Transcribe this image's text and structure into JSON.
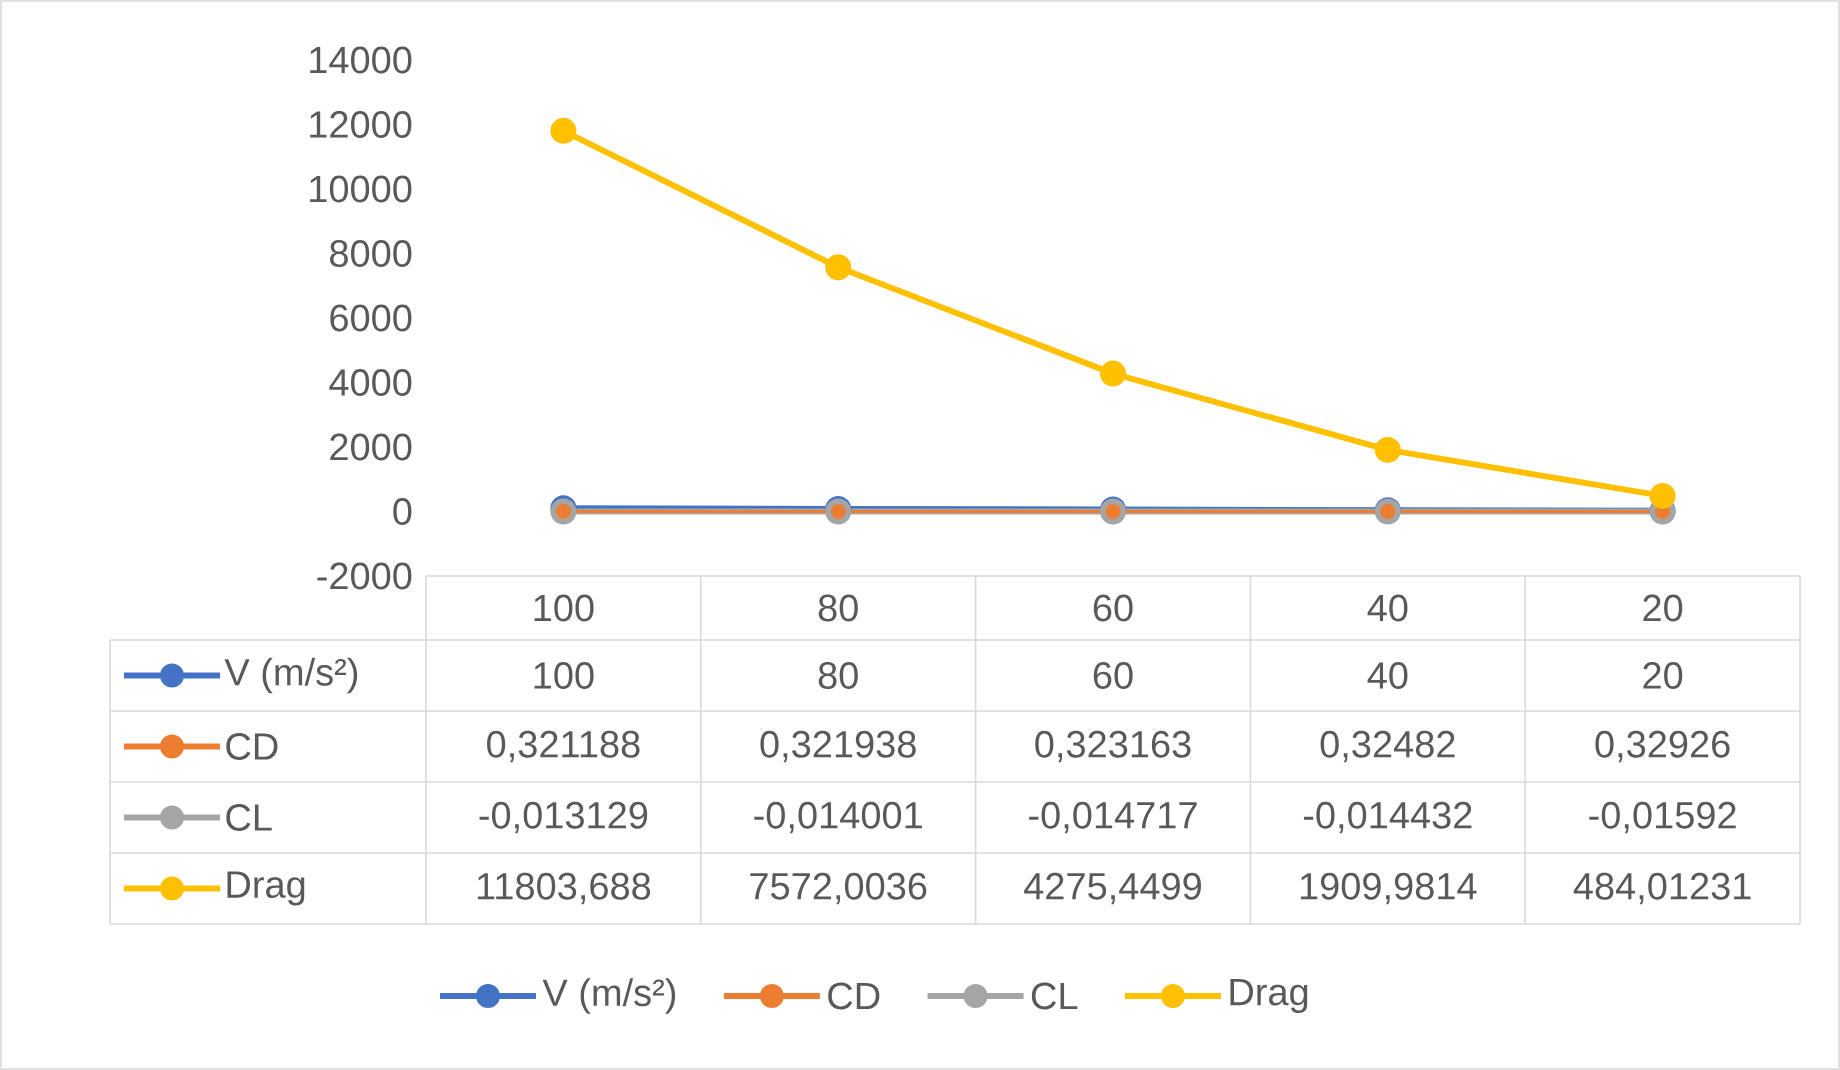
{
  "chart_data": {
    "type": "line",
    "categories": [
      "100",
      "80",
      "60",
      "40",
      "20"
    ],
    "series": [
      {
        "name": "V (m/s²)",
        "color": "#4472c4",
        "values": [
          100,
          80,
          60,
          40,
          20
        ],
        "value_labels": [
          "100",
          "80",
          "60",
          "40",
          "20"
        ]
      },
      {
        "name": "CD",
        "color": "#ed7d31",
        "values": [
          0.321188,
          0.321938,
          0.323163,
          0.32482,
          0.32926
        ],
        "value_labels": [
          "0,321188",
          "0,321938",
          "0,323163",
          "0,32482",
          "0,32926"
        ]
      },
      {
        "name": "CL",
        "color": "#a5a5a5",
        "values": [
          -0.013129,
          -0.014001,
          -0.014717,
          -0.014432,
          -0.01592
        ],
        "value_labels": [
          "-0,013129",
          "-0,014001",
          "-0,014717",
          "-0,014432",
          "-0,01592"
        ]
      },
      {
        "name": "Drag",
        "color": "#ffc000",
        "values": [
          11803.688,
          7572.0036,
          4275.4499,
          1909.9814,
          484.01231
        ],
        "value_labels": [
          "11803,688",
          "7572,0036",
          "4275,4499",
          "1909,9814",
          "484,01231"
        ]
      }
    ],
    "ylim": [
      -2000,
      14000
    ],
    "yticks": [
      -2000,
      0,
      2000,
      4000,
      6000,
      8000,
      10000,
      12000,
      14000
    ],
    "marker": "circle",
    "line_style": "solid",
    "legend": "bottom"
  }
}
